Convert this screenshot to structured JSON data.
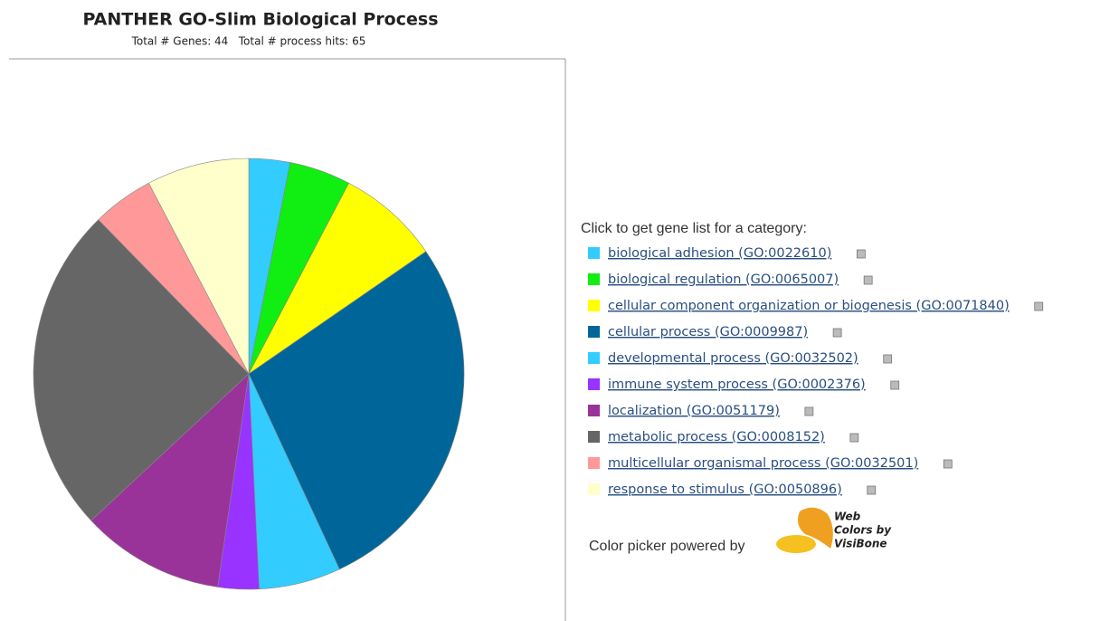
{
  "chart_data": {
    "type": "pie",
    "title": "PANTHER GO-Slim Biological Process",
    "subtitle": "Total # Genes: 44   Total # process hits: 65",
    "categories": [
      "biological adhesion (GO:0022610)",
      "biological regulation (GO:0065007)",
      "cellular component organization or biogenesis (GO:0071840)",
      "cellular process (GO:0009987)",
      "developmental process (GO:0032502)",
      "immune system process (GO:0002376)",
      "localization (GO:0051179)",
      "metabolic process (GO:0008152)",
      "multicellular organismal process (GO:0032501)",
      "response to stimulus (GO:0050896)"
    ],
    "values": [
      2,
      3,
      5,
      18,
      4,
      2,
      7,
      16,
      3,
      5
    ],
    "colors": [
      "#33ccff",
      "#11ee11",
      "#ffff00",
      "#006699",
      "#33ccff",
      "#9933ff",
      "#993399",
      "#666666",
      "#ff9999",
      "#ffffcc"
    ]
  },
  "legend_heading": "Click to get gene list for a category:",
  "credit": "Color picker powered by",
  "logo_lines": [
    "Web",
    "Colors by",
    "VisiBone"
  ]
}
